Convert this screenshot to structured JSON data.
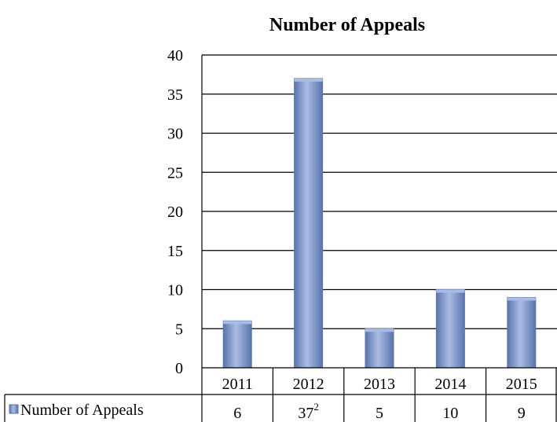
{
  "chart_data": {
    "type": "bar",
    "title": "Number of Appeals",
    "categories": [
      "2011",
      "2012",
      "2013",
      "2014",
      "2015"
    ],
    "series": [
      {
        "name": "Number of Appeals",
        "values": [
          6,
          37,
          5,
          10,
          9
        ],
        "value_labels": [
          "6",
          "37",
          "5",
          "10",
          "9"
        ],
        "footnote_marks": [
          "",
          "2",
          "",
          "",
          ""
        ]
      }
    ],
    "ylim": [
      0,
      40
    ],
    "yticks": [
      0,
      5,
      10,
      15,
      20,
      25,
      30,
      35,
      40
    ],
    "grid": true,
    "data_table": true,
    "colors": {
      "bar": "#7b93c4",
      "bar_dark": "#5a74ad",
      "bar_light": "#a9bde3"
    }
  }
}
